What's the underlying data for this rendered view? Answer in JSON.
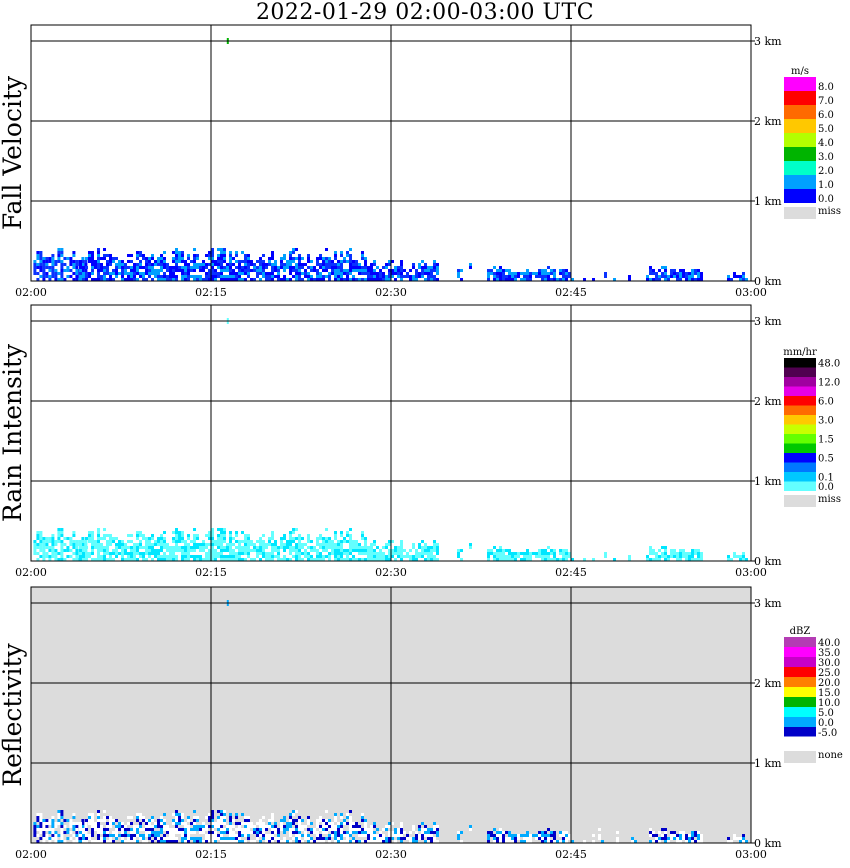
{
  "title": "2022-01-29   02:00-03:00 UTC",
  "x_ticks": [
    "02:00",
    "02:15",
    "02:30",
    "02:45",
    "03:00"
  ],
  "y_ticks": [
    "0 km",
    "1 km",
    "2 km",
    "3 km"
  ],
  "chart_data": [
    {
      "type": "heatmap",
      "title": "",
      "ylabel": "Fall Velocity",
      "xlabel": "",
      "xlim": [
        "02:00",
        "03:00"
      ],
      "ylim": [
        0,
        3.2
      ],
      "grid": true,
      "background": "#ffffff",
      "unit": "m/s",
      "legend": {
        "placement": "right",
        "bins": [
          {
            "label": "8.0",
            "color": "#ff00ff"
          },
          {
            "label": "7.0",
            "color": "#ff0000"
          },
          {
            "label": "6.0",
            "color": "#ff6a00"
          },
          {
            "label": "5.0",
            "color": "#ffc800"
          },
          {
            "label": "4.0",
            "color": "#b4ff00"
          },
          {
            "label": "3.0",
            "color": "#00b400"
          },
          {
            "label": "2.0",
            "color": "#00ffc8"
          },
          {
            "label": "1.0",
            "color": "#00a0ff"
          },
          {
            "label": "0.0",
            "color": "#0000ff"
          }
        ],
        "miss_label": "miss",
        "miss_color": "#dcdcdc"
      },
      "echo_colors": [
        "#0000ff",
        "#0a32ff",
        "#00a0ff"
      ],
      "echo_regions": [
        {
          "from": 0.2,
          "to": 4.6,
          "top_km": 0.45
        },
        {
          "from": 4.0,
          "to": 28.0,
          "top_km": 0.45
        },
        {
          "from": 28.0,
          "to": 34.0,
          "top_km": 0.3
        },
        {
          "from": 38.0,
          "to": 45.0,
          "top_km": 0.2
        },
        {
          "from": 51.5,
          "to": 56.0,
          "top_km": 0.2
        },
        {
          "from": 58.0,
          "to": 59.6,
          "top_km": 0.15
        }
      ],
      "sparse_regions": [
        {
          "from": 34.5,
          "to": 38.0,
          "top_km": 0.25
        },
        {
          "from": 45.0,
          "to": 51.5,
          "top_km": 0.2
        }
      ],
      "isolated_points": [
        {
          "t": 16.4,
          "km": 3.0,
          "color": "#00b400"
        }
      ]
    },
    {
      "type": "heatmap",
      "title": "",
      "ylabel": "Rain Intensity",
      "xlabel": "",
      "xlim": [
        "02:00",
        "03:00"
      ],
      "ylim": [
        0,
        3.2
      ],
      "grid": true,
      "background": "#ffffff",
      "unit": "mm/hr",
      "legend": {
        "placement": "right",
        "bins": [
          {
            "label": "48.0",
            "color": "#000000"
          },
          {
            "label": "",
            "color": "#500050"
          },
          {
            "label": "12.0",
            "color": "#a000a0"
          },
          {
            "label": "",
            "color": "#e600e6"
          },
          {
            "label": "6.0",
            "color": "#ff0000"
          },
          {
            "label": "",
            "color": "#ff6a00"
          },
          {
            "label": "3.0",
            "color": "#ffc800"
          },
          {
            "label": "",
            "color": "#c8ff00"
          },
          {
            "label": "1.5",
            "color": "#64ff00"
          },
          {
            "label": "",
            "color": "#00c800"
          },
          {
            "label": "0.5",
            "color": "#0000ff"
          },
          {
            "label": "",
            "color": "#0078ff"
          },
          {
            "label": "0.1",
            "color": "#00c8ff"
          },
          {
            "label": "0.0",
            "color": "#64ffff"
          }
        ],
        "miss_label": "miss",
        "miss_color": "#dcdcdc"
      },
      "echo_colors": [
        "#64ffff",
        "#64ffff",
        "#00e6ff"
      ],
      "echo_regions": [
        {
          "from": 0.2,
          "to": 4.6,
          "top_km": 0.45
        },
        {
          "from": 4.0,
          "to": 28.0,
          "top_km": 0.45
        },
        {
          "from": 28.0,
          "to": 34.0,
          "top_km": 0.3
        },
        {
          "from": 38.0,
          "to": 45.0,
          "top_km": 0.2
        },
        {
          "from": 51.5,
          "to": 56.0,
          "top_km": 0.2
        },
        {
          "from": 58.0,
          "to": 59.6,
          "top_km": 0.15
        }
      ],
      "sparse_regions": [
        {
          "from": 34.5,
          "to": 38.0,
          "top_km": 0.25
        },
        {
          "from": 45.0,
          "to": 51.5,
          "top_km": 0.2
        }
      ],
      "isolated_points": [
        {
          "t": 16.4,
          "km": 3.0,
          "color": "#64ffff"
        }
      ]
    },
    {
      "type": "heatmap",
      "title": "",
      "ylabel": "Reflectivity",
      "xlabel": "",
      "xlim": [
        "02:00",
        "03:00"
      ],
      "ylim": [
        0,
        3.2
      ],
      "grid": true,
      "background": "#dcdcdc",
      "unit": "dBZ",
      "legend": {
        "placement": "right",
        "bins": [
          {
            "label": "40.0",
            "color": "#b43cb4"
          },
          {
            "label": "35.0",
            "color": "#ff00ff"
          },
          {
            "label": "30.0",
            "color": "#c800c8"
          },
          {
            "label": "25.0",
            "color": "#ff0000"
          },
          {
            "label": "20.0",
            "color": "#ff8000"
          },
          {
            "label": "15.0",
            "color": "#ffff00"
          },
          {
            "label": "10.0",
            "color": "#00b400"
          },
          {
            "label": "5.0",
            "color": "#00ffff"
          },
          {
            "label": "0.0",
            "color": "#00aaff"
          },
          {
            "label": "-5.0",
            "color": "#0000c8"
          }
        ],
        "extra_bin": {
          "label": "",
          "color": "#ffffff"
        },
        "none_label": "none",
        "none_color": "#dcdcdc"
      },
      "echo_colors": [
        "#ffffff",
        "#ffffff",
        "#0000c8",
        "#00aaff"
      ],
      "echo_regions": [
        {
          "from": 0.2,
          "to": 4.6,
          "top_km": 0.45
        },
        {
          "from": 4.0,
          "to": 28.0,
          "top_km": 0.45
        },
        {
          "from": 28.0,
          "to": 34.0,
          "top_km": 0.3
        },
        {
          "from": 38.0,
          "to": 45.0,
          "top_km": 0.2
        },
        {
          "from": 51.5,
          "to": 56.0,
          "top_km": 0.2
        },
        {
          "from": 58.0,
          "to": 59.6,
          "top_km": 0.15
        }
      ],
      "sparse_regions": [
        {
          "from": 34.5,
          "to": 38.0,
          "top_km": 0.25
        },
        {
          "from": 45.0,
          "to": 51.5,
          "top_km": 0.25
        }
      ],
      "isolated_points": [
        {
          "t": 16.4,
          "km": 3.0,
          "color": "#00aaff"
        }
      ]
    }
  ]
}
